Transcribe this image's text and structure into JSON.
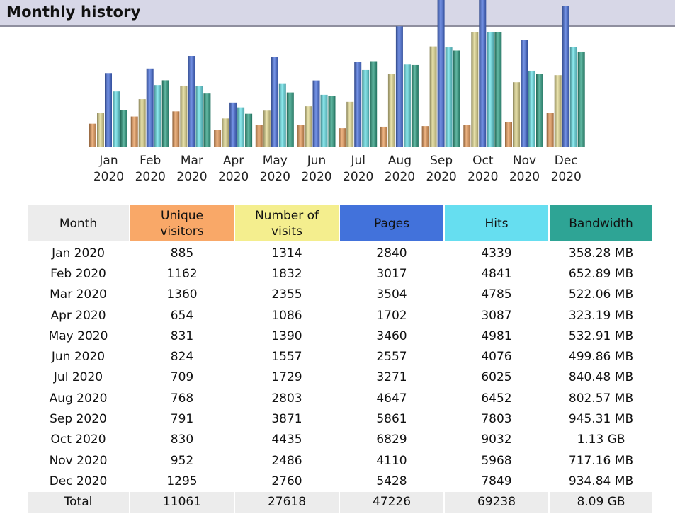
{
  "header": {
    "title": "Monthly history"
  },
  "colors": {
    "visitors": "#e8954f",
    "visits": "#e3d98a",
    "pages": "#3b66dc",
    "hits": "#5cdfe6",
    "bandwidth": "#1f9a7c"
  },
  "chart_data": {
    "type": "bar",
    "categories": [
      "Jan 2020",
      "Feb 2020",
      "Mar 2020",
      "Apr 2020",
      "May 2020",
      "Jun 2020",
      "Jul 2020",
      "Aug 2020",
      "Sep 2020",
      "Oct 2020",
      "Nov 2020",
      "Dec 2020"
    ],
    "category_lines": [
      [
        "Jan",
        "2020"
      ],
      [
        "Feb",
        "2020"
      ],
      [
        "Mar",
        "2020"
      ],
      [
        "Apr",
        "2020"
      ],
      [
        "May",
        "2020"
      ],
      [
        "Jun",
        "2020"
      ],
      [
        "Jul",
        "2020"
      ],
      [
        "Aug",
        "2020"
      ],
      [
        "Sep",
        "2020"
      ],
      [
        "Oct",
        "2020"
      ],
      [
        "Nov",
        "2020"
      ],
      [
        "Dec",
        "2020"
      ]
    ],
    "series": [
      {
        "name": "Unique visitors",
        "values": [
          885,
          1162,
          1360,
          654,
          831,
          824,
          709,
          768,
          791,
          830,
          952,
          1295
        ]
      },
      {
        "name": "Number of visits",
        "values": [
          1314,
          1832,
          2355,
          1086,
          1390,
          1557,
          1729,
          2803,
          3871,
          4435,
          2486,
          2760
        ]
      },
      {
        "name": "Pages",
        "values": [
          2840,
          3017,
          3504,
          1702,
          3460,
          2557,
          3271,
          4647,
          5861,
          6829,
          4110,
          5428
        ]
      },
      {
        "name": "Hits",
        "values": [
          4339,
          4841,
          4785,
          3087,
          4981,
          4076,
          6025,
          6452,
          7803,
          9032,
          5968,
          7849
        ]
      },
      {
        "name": "Bandwidth",
        "values": [
          358.28,
          652.89,
          522.06,
          323.19,
          532.91,
          499.86,
          840.48,
          802.57,
          945.31,
          1130,
          717.16,
          934.84
        ]
      }
    ]
  },
  "table": {
    "headers": {
      "month": "Month",
      "visitors_1": "Unique",
      "visitors_2": "visitors",
      "visits_1": "Number of",
      "visits_2": "visits",
      "pages": "Pages",
      "hits": "Hits",
      "bandwidth": "Bandwidth"
    },
    "rows": [
      [
        "Jan 2020",
        "885",
        "1314",
        "2840",
        "4339",
        "358.28 MB"
      ],
      [
        "Feb 2020",
        "1162",
        "1832",
        "3017",
        "4841",
        "652.89 MB"
      ],
      [
        "Mar 2020",
        "1360",
        "2355",
        "3504",
        "4785",
        "522.06 MB"
      ],
      [
        "Apr 2020",
        "654",
        "1086",
        "1702",
        "3087",
        "323.19 MB"
      ],
      [
        "May 2020",
        "831",
        "1390",
        "3460",
        "4981",
        "532.91 MB"
      ],
      [
        "Jun 2020",
        "824",
        "1557",
        "2557",
        "4076",
        "499.86 MB"
      ],
      [
        "Jul 2020",
        "709",
        "1729",
        "3271",
        "6025",
        "840.48 MB"
      ],
      [
        "Aug 2020",
        "768",
        "2803",
        "4647",
        "6452",
        "802.57 MB"
      ],
      [
        "Sep 2020",
        "791",
        "3871",
        "5861",
        "7803",
        "945.31 MB"
      ],
      [
        "Oct 2020",
        "830",
        "4435",
        "6829",
        "9032",
        "1.13 GB"
      ],
      [
        "Nov 2020",
        "952",
        "2486",
        "4110",
        "5968",
        "717.16 MB"
      ],
      [
        "Dec 2020",
        "1295",
        "2760",
        "5428",
        "7849",
        "934.84 MB"
      ]
    ],
    "total": [
      "Total",
      "11061",
      "27618",
      "47226",
      "69238",
      "8.09 GB"
    ]
  }
}
